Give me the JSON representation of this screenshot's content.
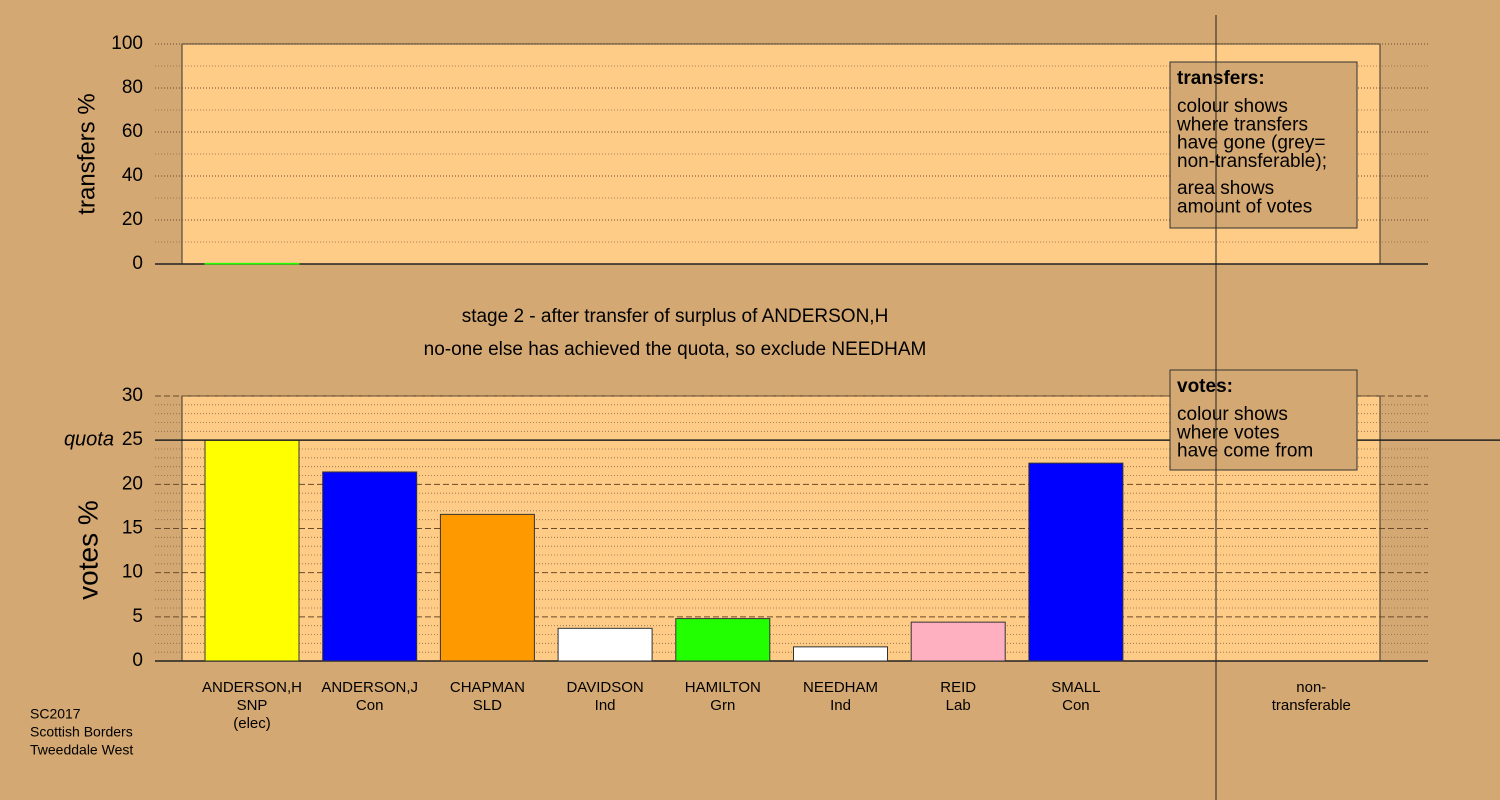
{
  "chart_data": [
    {
      "type": "bar",
      "ylabel": "transfers %",
      "ylim": [
        0,
        100
      ],
      "yticks": [
        0,
        20,
        40,
        60,
        80,
        100
      ],
      "values": [
        0.3,
        0,
        0,
        0,
        0,
        0,
        0,
        0,
        null,
        0
      ],
      "color": "#22ff00",
      "legend_title": "transfers:",
      "legend_lines": [
        "colour shows",
        "where transfers",
        "have gone (grey=",
        "non-transferable);",
        "area shows",
        "amount of votes"
      ]
    },
    {
      "type": "bar",
      "title": "stage 2 - after transfer of surplus of ANDERSON,H",
      "subtitle": "no-one else has achieved the quota, so exclude NEEDHAM",
      "ylabel": "votes %",
      "ylim": [
        0,
        30
      ],
      "yticks": [
        0,
        5,
        10,
        15,
        20,
        25,
        30
      ],
      "quota": 25,
      "quota_label": "quota",
      "categories": [
        [
          "ANDERSON,H",
          "SNP",
          "(elec)"
        ],
        [
          "ANDERSON,J",
          "Con"
        ],
        [
          "CHAPMAN",
          "SLD"
        ],
        [
          "DAVIDSON",
          "Ind"
        ],
        [
          "HAMILTON",
          "Grn"
        ],
        [
          "NEEDHAM",
          "Ind"
        ],
        [
          "REID",
          "Lab"
        ],
        [
          "SMALL",
          "Con"
        ],
        null,
        [
          "non-",
          "transferable"
        ]
      ],
      "values": [
        25,
        21.4,
        16.6,
        3.7,
        4.8,
        1.6,
        4.4,
        22.4,
        null,
        0
      ],
      "colors": [
        "#ffff00",
        "#0000ff",
        "#ff9900",
        "#ffffff",
        "#22ff00",
        "#ffffff",
        "#ffb0c0",
        "#0000ff",
        null,
        "#aaaaaa"
      ],
      "legend_title": "votes:",
      "legend_lines": [
        "colour shows",
        "where votes",
        "have come from"
      ],
      "footnote": [
        "SC2017",
        "Scottish Borders",
        "Tweeddale West"
      ]
    }
  ]
}
